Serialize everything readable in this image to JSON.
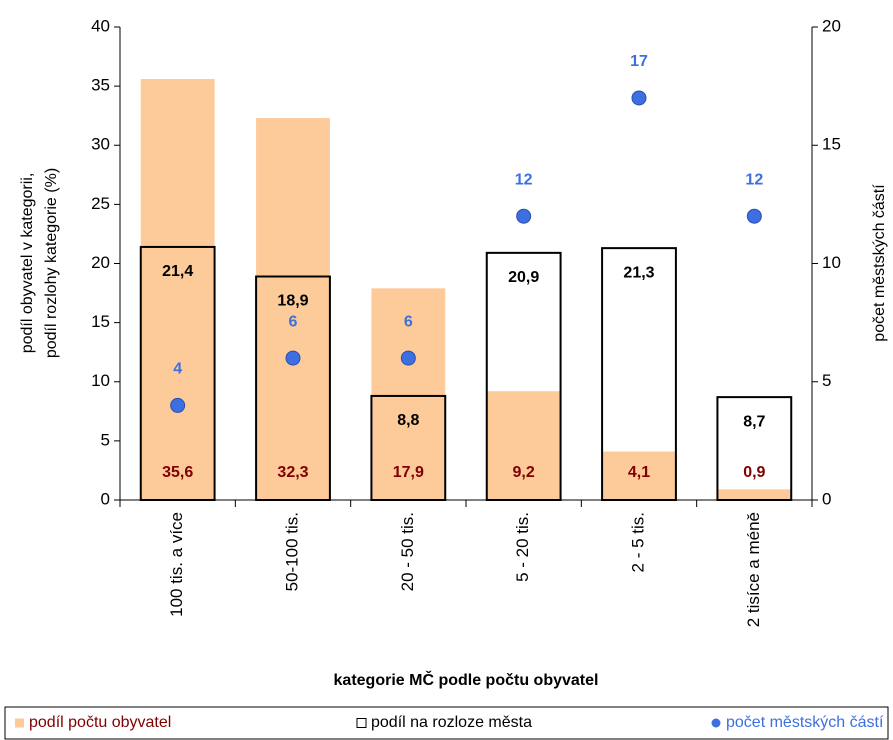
{
  "chart_data": {
    "type": "bar",
    "xlabel": "kategorie MČ podle počtu obyvatel",
    "ylabel": [
      "podíl obyvatel v kategorii,",
      "podíl rozlohy kategorie (%)"
    ],
    "y2label": "počet městských částí",
    "categories": [
      "100 tis. a více",
      "50-100 tis.",
      "20 - 50 tis.",
      "5 - 20 tis.",
      "2 - 5 tis.",
      "2 tisíce a méně"
    ],
    "series": [
      {
        "name": "podíl počtu obyvatel",
        "color": "#fdca9a",
        "label_color": "#800000",
        "filled": true,
        "values": [
          35.6,
          32.3,
          17.9,
          9.2,
          4.1,
          0.9
        ],
        "value_labels": [
          "35,6",
          "32,3",
          "17,9",
          "9,2",
          "4,1",
          "0,9"
        ]
      },
      {
        "name": "podíl na rozloze města",
        "color": "#000000",
        "label_color": "#000000",
        "filled": false,
        "values": [
          21.4,
          18.9,
          8.8,
          20.9,
          21.3,
          8.7
        ],
        "value_labels": [
          "21,4",
          "18,9",
          "8,8",
          "20,9",
          "21,3",
          "8,7"
        ]
      },
      {
        "name": "počet městských částí",
        "type": "scatter",
        "axis": "y2",
        "color": "#3d6fe0",
        "label_color": "#3d6fe0",
        "values": [
          4,
          6,
          6,
          12,
          17,
          12
        ]
      }
    ],
    "ylim": [
      0,
      40
    ],
    "yticks": [
      0,
      5,
      10,
      15,
      20,
      25,
      30,
      35,
      40
    ],
    "y2lim": [
      0,
      20
    ],
    "y2ticks": [
      0,
      5,
      10,
      15,
      20
    ],
    "legend": "bottom"
  }
}
